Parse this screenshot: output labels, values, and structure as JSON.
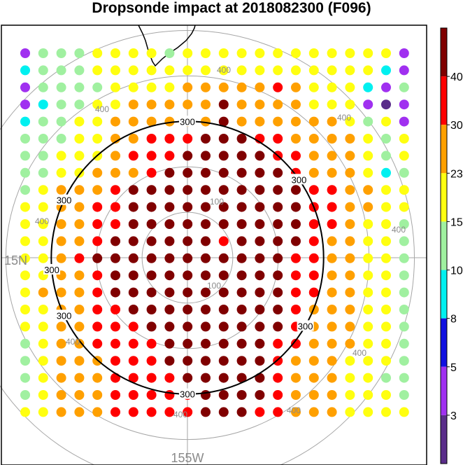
{
  "title": "Dropsonde impact at 2018082300 (F096)",
  "map": {
    "latitude_label": "15N",
    "longitude_label": "155W",
    "range_ring_labels": [
      "100",
      "100",
      "400",
      "400",
      "400",
      "400",
      "400",
      "400",
      "400",
      "400",
      "400"
    ],
    "range_ring_values_km": [
      100,
      200,
      400,
      500
    ],
    "highlight_contour_km": 300,
    "highlight_contour_labels": [
      "300",
      "300",
      "300",
      "300",
      "300",
      "300",
      "300"
    ],
    "grid": {
      "rows": 22,
      "cols": 22,
      "values": [
        [
          4,
          10,
          11,
          14,
          15,
          17,
          17,
          17,
          14,
          17,
          17,
          17,
          17,
          18,
          17,
          17,
          17,
          17,
          17,
          17,
          17,
          3
        ],
        [
          8,
          10,
          11,
          14,
          15,
          17,
          17,
          17,
          17,
          17,
          17,
          22,
          17,
          17,
          17,
          17,
          17,
          17,
          17,
          17,
          8,
          3
        ],
        [
          4,
          10,
          10,
          11,
          11,
          17,
          17,
          17,
          17,
          24,
          24,
          24,
          24,
          24,
          34,
          24,
          17,
          17,
          17,
          8,
          4,
          10
        ],
        [
          4,
          8,
          10,
          10,
          17,
          17,
          24,
          24,
          24,
          24,
          24,
          43,
          24,
          24,
          24,
          24,
          17,
          17,
          17,
          4,
          2,
          4
        ],
        [
          8,
          10,
          10,
          17,
          17,
          24,
          24,
          24,
          24,
          26,
          28,
          43,
          28,
          24,
          24,
          24,
          24,
          24,
          17,
          10,
          17,
          4
        ],
        [
          10,
          10,
          14,
          17,
          17,
          24,
          24,
          34,
          34,
          34,
          43,
          43,
          43,
          34,
          34,
          24,
          24,
          24,
          24,
          17,
          10,
          17
        ],
        [
          10,
          10,
          17,
          17,
          17,
          24,
          34,
          34,
          34,
          43,
          43,
          43,
          43,
          43,
          34,
          34,
          24,
          24,
          24,
          17,
          10,
          17
        ],
        [
          10,
          10,
          17,
          17,
          24,
          24,
          24,
          34,
          43,
          43,
          43,
          43,
          43,
          43,
          43,
          34,
          24,
          24,
          24,
          17,
          8,
          10
        ],
        [
          10,
          17,
          24,
          24,
          24,
          34,
          43,
          43,
          43,
          43,
          43,
          43,
          43,
          43,
          43,
          43,
          34,
          34,
          24,
          24,
          17,
          17
        ],
        [
          17,
          17,
          24,
          24,
          34,
          34,
          43,
          43,
          43,
          43,
          43,
          43,
          43,
          43,
          43,
          43,
          34,
          34,
          24,
          24,
          17,
          17
        ],
        [
          17,
          17,
          24,
          24,
          34,
          34,
          43,
          43,
          43,
          43,
          43,
          43,
          43,
          43,
          43,
          43,
          34,
          34,
          24,
          17,
          17,
          10
        ],
        [
          17,
          17,
          24,
          24,
          34,
          43,
          43,
          43,
          43,
          43,
          43,
          34,
          43,
          43,
          43,
          43,
          34,
          24,
          24,
          17,
          17,
          14
        ],
        [
          17,
          17,
          24,
          34,
          43,
          43,
          43,
          43,
          43,
          43,
          43,
          43,
          43,
          43,
          43,
          34,
          34,
          24,
          24,
          17,
          17,
          10
        ],
        [
          17,
          17,
          24,
          24,
          34,
          43,
          43,
          43,
          43,
          43,
          43,
          43,
          43,
          43,
          43,
          34,
          34,
          24,
          24,
          17,
          17,
          10
        ],
        [
          17,
          24,
          24,
          24,
          34,
          43,
          43,
          43,
          43,
          43,
          43,
          43,
          43,
          43,
          43,
          34,
          34,
          24,
          24,
          17,
          17,
          10
        ],
        [
          17,
          17,
          24,
          24,
          34,
          34,
          43,
          43,
          43,
          43,
          43,
          43,
          43,
          43,
          43,
          34,
          24,
          24,
          24,
          17,
          17,
          10
        ],
        [
          17,
          17,
          24,
          24,
          34,
          34,
          34,
          43,
          43,
          43,
          43,
          43,
          43,
          43,
          43,
          34,
          24,
          24,
          24,
          17,
          17,
          10
        ],
        [
          14,
          17,
          24,
          24,
          34,
          34,
          34,
          34,
          43,
          43,
          43,
          43,
          43,
          43,
          34,
          34,
          24,
          24,
          24,
          17,
          17,
          14
        ],
        [
          10,
          17,
          24,
          24,
          24,
          34,
          34,
          34,
          43,
          43,
          43,
          43,
          43,
          43,
          34,
          24,
          24,
          24,
          17,
          17,
          17,
          10
        ],
        [
          10,
          17,
          24,
          24,
          24,
          34,
          34,
          34,
          34,
          43,
          43,
          43,
          43,
          43,
          34,
          24,
          24,
          24,
          17,
          17,
          14,
          10
        ],
        [
          14,
          17,
          24,
          24,
          24,
          34,
          34,
          34,
          34,
          34,
          43,
          43,
          43,
          43,
          34,
          24,
          24,
          24,
          17,
          17,
          17,
          14
        ],
        [
          17,
          17,
          24,
          24,
          24,
          34,
          34,
          34,
          34,
          34,
          43,
          43,
          43,
          34,
          34,
          24,
          24,
          24,
          17,
          17,
          17,
          17
        ]
      ]
    }
  },
  "colorbar": {
    "tick_labels": [
      "3",
      "5",
      "8",
      "10",
      "15",
      "23",
      "30",
      "40"
    ],
    "levels": [
      3,
      5,
      8,
      10,
      15,
      23,
      30,
      40
    ],
    "colors": [
      "#5a2d8a",
      "#a030f0",
      "#1010e0",
      "#00f0f0",
      "#a0f0a0",
      "#ffff10",
      "#ffa000",
      "#ff0000",
      "#800000"
    ]
  },
  "colors": {
    "ring": "#a6a6a6",
    "highlight_ring": "#000000",
    "graticule": "#a6a6a6",
    "frame": "#000000",
    "coastline": "#000000"
  }
}
